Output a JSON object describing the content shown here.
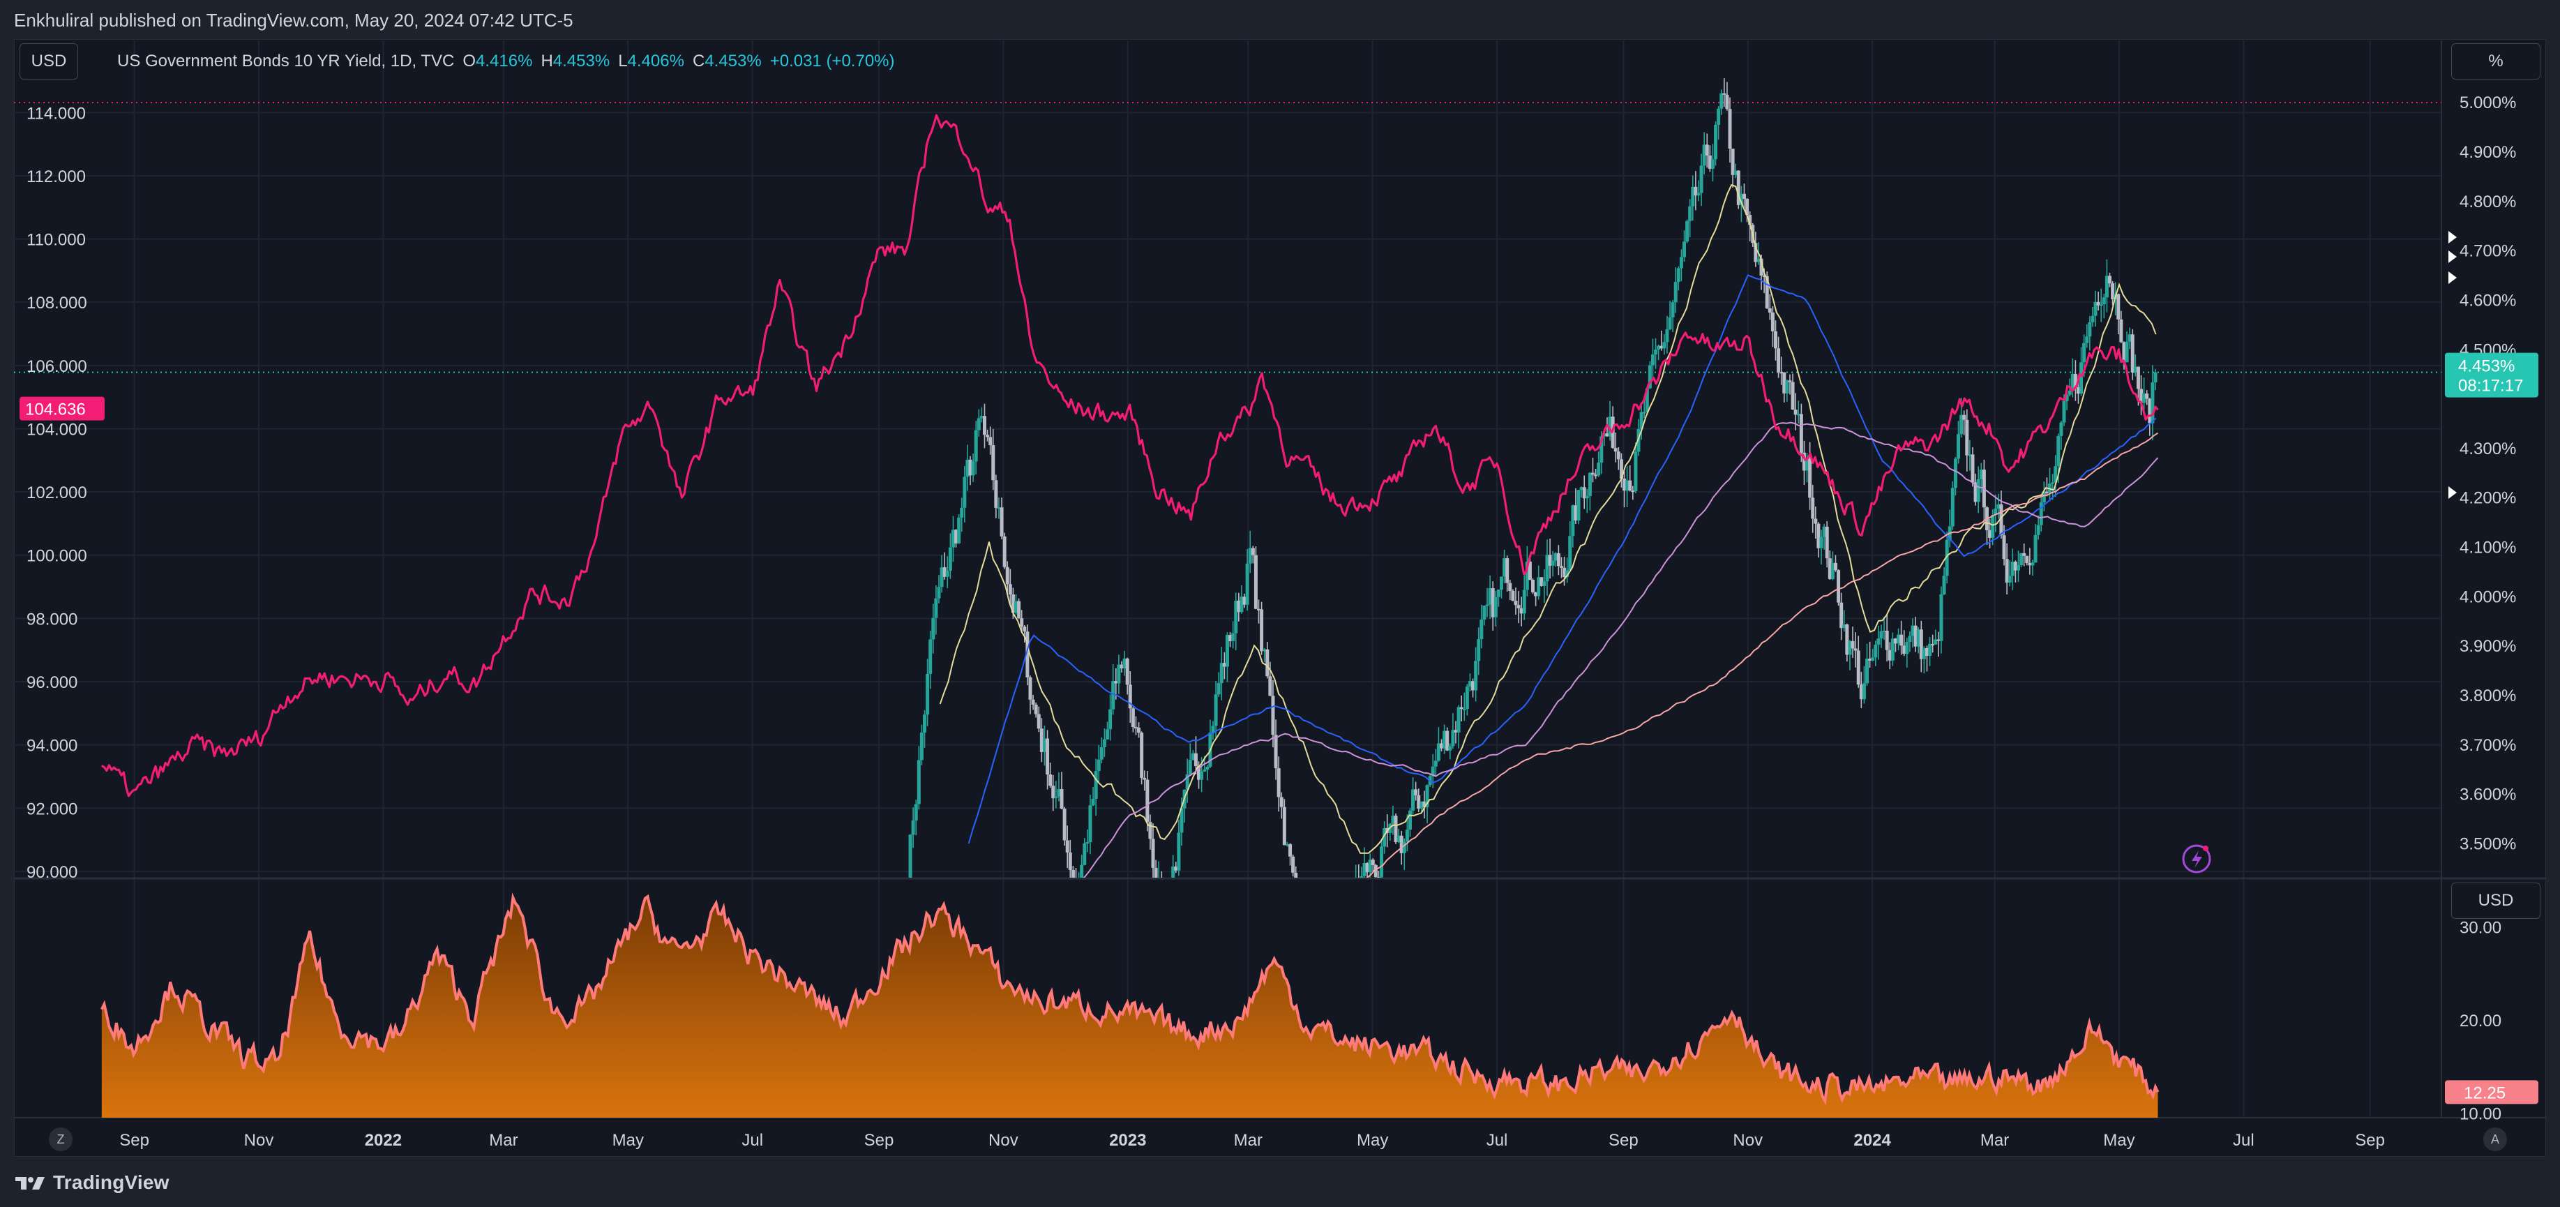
{
  "header": {
    "published_by": "Enkhuliral published on TradingView.com, May 20, 2024 07:42 UTC-5"
  },
  "toolbar": {
    "currency_left": "USD",
    "percent_right": "%",
    "currency_lower": "USD",
    "zoom_left": "Z",
    "auto_right": "A"
  },
  "legend": {
    "symbol": "US Government Bonds 10 YR Yield, 1D, TVC",
    "o_label": "O",
    "o_value": "4.416%",
    "h_label": "H",
    "h_value": "4.453%",
    "l_label": "L",
    "l_value": "4.406%",
    "c_label": "C",
    "c_value": "4.453%",
    "change": "+0.031 (+0.70%)"
  },
  "badges": {
    "dxy_last": "104.636",
    "yield_last": "4.453%",
    "countdown": "08:17:17",
    "vol_last": "12.25"
  },
  "footer": {
    "brand": "TradingView"
  },
  "colors": {
    "background": "#131722",
    "candle_up": "#26a69a",
    "candle_down": "#b8bcc6",
    "dxy": "#f21d74",
    "ma20": "#e6dc9a",
    "ma50": "#2962ff",
    "ma100": "#ce93d8",
    "ma200": "#f7a7a7",
    "volatility_line": "#ff7b7b",
    "volatility_fill_top": "#7a3b05",
    "volatility_fill_bottom": "#d9740e",
    "badge_teal": "#26c6b2",
    "badge_pink": "#f21d74"
  },
  "chart_data": [
    {
      "type": "line",
      "series_role": "main pane: 10Y yield candles with moving averages and dollar index overlay",
      "x_axis": {
        "tick_labels": [
          "Sep",
          "Nov",
          "2022",
          "Mar",
          "May",
          "Jul",
          "Sep",
          "Nov",
          "2023",
          "Mar",
          "May",
          "Jul",
          "Sep",
          "Nov",
          "2024",
          "Mar",
          "May",
          "Jul",
          "Sep"
        ],
        "bold_labels": [
          "2022",
          "2023",
          "2024"
        ],
        "range": [
          "2021-08-14",
          "2024-10-06"
        ]
      },
      "left_axis": {
        "tick_labels": [
          "114.000",
          "112.000",
          "110.000",
          "108.000",
          "106.000",
          "104.000",
          "102.000",
          "100.000",
          "98.000",
          "96.000",
          "94.000",
          "92.000",
          "90.000"
        ],
        "range": [
          89.8,
          114.8
        ]
      },
      "right_axis": {
        "tick_labels": [
          "5.000%",
          "4.900%",
          "4.800%",
          "4.700%",
          "4.600%",
          "4.500%",
          "4.300%",
          "4.200%",
          "4.100%",
          "4.000%",
          "3.900%",
          "3.800%",
          "3.700%",
          "3.600%",
          "3.500%"
        ],
        "range": [
          3.43,
          5.03
        ],
        "note": "percent scale, upper portion of the 10Y yield range"
      },
      "series": [
        {
          "role": "dollar index (left axis)",
          "points": [
            [
              "2021-08-16",
              93.4
            ],
            [
              "2021-09-01",
              92.4
            ],
            [
              "2021-09-15",
              93.2
            ],
            [
              "2021-10-01",
              94.0
            ],
            [
              "2021-10-15",
              93.7
            ],
            [
              "2021-11-01",
              94.2
            ],
            [
              "2021-11-15",
              95.6
            ],
            [
              "2021-12-01",
              96.2
            ],
            [
              "2021-12-15",
              96.1
            ],
            [
              "2022-01-03",
              96.1
            ],
            [
              "2022-01-14",
              95.3
            ],
            [
              "2022-02-01",
              96.3
            ],
            [
              "2022-02-15",
              95.9
            ],
            [
              "2022-03-01",
              97.4
            ],
            [
              "2022-03-15",
              98.8
            ],
            [
              "2022-04-01",
              98.6
            ],
            [
              "2022-04-15",
              100.4
            ],
            [
              "2022-04-28",
              103.8
            ],
            [
              "2022-05-13",
              104.8
            ],
            [
              "2022-05-27",
              101.7
            ],
            [
              "2022-06-15",
              105.0
            ],
            [
              "2022-07-01",
              105.1
            ],
            [
              "2022-07-14",
              108.5
            ],
            [
              "2022-08-01",
              105.3
            ],
            [
              "2022-08-15",
              106.7
            ],
            [
              "2022-09-01",
              109.6
            ],
            [
              "2022-09-15",
              109.7
            ],
            [
              "2022-09-28",
              114.0
            ],
            [
              "2022-10-14",
              113.0
            ],
            [
              "2022-10-25",
              110.9
            ],
            [
              "2022-11-04",
              110.8
            ],
            [
              "2022-11-15",
              106.4
            ],
            [
              "2022-12-01",
              104.8
            ],
            [
              "2022-12-15",
              104.5
            ],
            [
              "2023-01-03",
              104.4
            ],
            [
              "2023-01-15",
              102.2
            ],
            [
              "2023-02-01",
              101.2
            ],
            [
              "2023-02-15",
              103.8
            ],
            [
              "2023-03-01",
              104.5
            ],
            [
              "2023-03-08",
              105.7
            ],
            [
              "2023-03-20",
              103.2
            ],
            [
              "2023-04-01",
              102.6
            ],
            [
              "2023-04-14",
              101.6
            ],
            [
              "2023-05-01",
              101.8
            ],
            [
              "2023-05-15",
              102.5
            ],
            [
              "2023-05-31",
              104.2
            ],
            [
              "2023-06-15",
              102.1
            ],
            [
              "2023-07-01",
              103.0
            ],
            [
              "2023-07-14",
              99.6
            ],
            [
              "2023-08-01",
              101.9
            ],
            [
              "2023-08-15",
              103.2
            ],
            [
              "2023-09-01",
              104.3
            ],
            [
              "2023-09-15",
              105.3
            ],
            [
              "2023-10-03",
              107.1
            ],
            [
              "2023-10-15",
              106.5
            ],
            [
              "2023-11-01",
              106.7
            ],
            [
              "2023-11-15",
              104.3
            ],
            [
              "2023-12-01",
              103.3
            ],
            [
              "2023-12-27",
              100.9
            ],
            [
              "2024-01-15",
              103.3
            ],
            [
              "2024-02-01",
              103.6
            ],
            [
              "2024-02-14",
              104.9
            ],
            [
              "2024-03-01",
              103.9
            ],
            [
              "2024-03-08",
              102.7
            ],
            [
              "2024-04-01",
              104.6
            ],
            [
              "2024-04-16",
              106.4
            ],
            [
              "2024-05-01",
              106.3
            ],
            [
              "2024-05-15",
              104.3
            ],
            [
              "2024-05-20",
              104.6
            ]
          ]
        },
        {
          "role": "10Y yield daily close (right axis)",
          "points": [
            [
              "2022-09-15",
              3.45
            ],
            [
              "2022-09-28",
              3.95
            ],
            [
              "2022-10-21",
              4.34
            ],
            [
              "2022-11-15",
              3.8
            ],
            [
              "2022-12-07",
              3.42
            ],
            [
              "2022-12-30",
              3.88
            ],
            [
              "2023-01-18",
              3.37
            ],
            [
              "2023-03-02",
              4.08
            ],
            [
              "2023-03-24",
              3.38
            ],
            [
              "2023-04-06",
              3.29
            ],
            [
              "2023-04-28",
              3.44
            ],
            [
              "2023-05-15",
              3.5
            ],
            [
              "2023-06-10",
              3.75
            ],
            [
              "2023-07-07",
              4.05
            ],
            [
              "2023-08-01",
              4.05
            ],
            [
              "2023-08-21",
              4.34
            ],
            [
              "2023-09-06",
              4.27
            ],
            [
              "2023-09-27",
              4.62
            ],
            [
              "2023-10-19",
              4.98
            ],
            [
              "2023-11-01",
              4.73
            ],
            [
              "2023-11-20",
              4.42
            ],
            [
              "2023-12-05",
              4.17
            ],
            [
              "2023-12-27",
              3.81
            ],
            [
              "2024-01-12",
              3.94
            ],
            [
              "2024-02-01",
              3.87
            ],
            [
              "2024-02-13",
              4.31
            ],
            [
              "2024-03-08",
              4.07
            ],
            [
              "2024-03-28",
              4.2
            ],
            [
              "2024-04-25",
              4.7
            ],
            [
              "2024-05-15",
              4.35
            ],
            [
              "2024-05-20",
              4.453
            ]
          ]
        },
        {
          "role": "moving average 20 (right axis)",
          "points": [
            [
              "2022-10-01",
              3.78
            ],
            [
              "2022-10-25",
              4.1
            ],
            [
              "2022-12-01",
              3.7
            ],
            [
              "2023-01-20",
              3.5
            ],
            [
              "2023-03-05",
              3.9
            ],
            [
              "2023-03-25",
              3.72
            ],
            [
              "2023-04-25",
              3.48
            ],
            [
              "2023-06-01",
              3.6
            ],
            [
              "2023-07-15",
              3.92
            ],
            [
              "2023-08-30",
              4.22
            ],
            [
              "2023-10-25",
              4.85
            ],
            [
              "2023-11-30",
              4.4
            ],
            [
              "2023-12-30",
              3.92
            ],
            [
              "2024-02-15",
              4.12
            ],
            [
              "2024-03-30",
              4.22
            ],
            [
              "2024-05-01",
              4.62
            ],
            [
              "2024-05-20",
              4.53
            ]
          ]
        },
        {
          "role": "moving average 50 (right axis)",
          "points": [
            [
              "2022-10-15",
              3.5
            ],
            [
              "2022-11-15",
              3.92
            ],
            [
              "2022-12-15",
              3.83
            ],
            [
              "2023-01-31",
              3.7
            ],
            [
              "2023-03-15",
              3.78
            ],
            [
              "2023-04-30",
              3.68
            ],
            [
              "2023-06-01",
              3.62
            ],
            [
              "2023-07-15",
              3.78
            ],
            [
              "2023-08-31",
              4.1
            ],
            [
              "2023-10-01",
              4.35
            ],
            [
              "2023-11-01",
              4.65
            ],
            [
              "2023-11-30",
              4.6
            ],
            [
              "2024-01-05",
              4.28
            ],
            [
              "2024-02-15",
              4.08
            ],
            [
              "2024-03-15",
              4.15
            ],
            [
              "2024-04-15",
              4.25
            ],
            [
              "2024-05-20",
              4.36
            ]
          ]
        },
        {
          "role": "moving average 100 (right axis)",
          "points": [
            [
              "2022-12-01",
              3.38
            ],
            [
              "2023-01-01",
              3.55
            ],
            [
              "2023-02-15",
              3.68
            ],
            [
              "2023-03-20",
              3.72
            ],
            [
              "2023-04-30",
              3.67
            ],
            [
              "2023-06-01",
              3.64
            ],
            [
              "2023-07-15",
              3.7
            ],
            [
              "2023-09-01",
              3.95
            ],
            [
              "2023-10-15",
              4.2
            ],
            [
              "2023-11-15",
              4.35
            ],
            [
              "2023-12-15",
              4.34
            ],
            [
              "2024-01-30",
              4.28
            ],
            [
              "2024-03-15",
              4.17
            ],
            [
              "2024-04-15",
              4.14
            ],
            [
              "2024-05-20",
              4.28
            ]
          ]
        },
        {
          "role": "moving average 200 (right axis)",
          "points": [
            [
              "2023-04-20",
              3.4
            ],
            [
              "2023-06-01",
              3.55
            ],
            [
              "2023-07-15",
              3.67
            ],
            [
              "2023-08-31",
              3.72
            ],
            [
              "2023-10-15",
              3.82
            ],
            [
              "2023-11-30",
              3.98
            ],
            [
              "2024-01-15",
              4.08
            ],
            [
              "2024-02-29",
              4.16
            ],
            [
              "2024-04-15",
              4.24
            ],
            [
              "2024-05-20",
              4.33
            ]
          ]
        }
      ],
      "last_values": {
        "dxy": 104.636,
        "yield": 4.453
      }
    },
    {
      "type": "area",
      "series_role": "lower pane volatility index",
      "y_axis": {
        "tick_labels": [
          "30.00",
          "20.00",
          "10.00"
        ],
        "range": [
          9.5,
          35.0
        ]
      },
      "points": [
        [
          "2021-08-16",
          22.0
        ],
        [
          "2021-09-01",
          17.0
        ],
        [
          "2021-09-20",
          24.0
        ],
        [
          "2021-10-05",
          20.0
        ],
        [
          "2021-10-25",
          16.0
        ],
        [
          "2021-11-10",
          15.0
        ],
        [
          "2021-11-26",
          28.5
        ],
        [
          "2021-12-10",
          19.5
        ],
        [
          "2021-12-31",
          17.5
        ],
        [
          "2022-01-10",
          18.5
        ],
        [
          "2022-01-27",
          27.0
        ],
        [
          "2022-02-14",
          20.5
        ],
        [
          "2022-03-07",
          33.0
        ],
        [
          "2022-03-25",
          21.0
        ],
        [
          "2022-04-10",
          21.0
        ],
        [
          "2022-05-09",
          32.0
        ],
        [
          "2022-05-25",
          27.0
        ],
        [
          "2022-06-16",
          31.0
        ],
        [
          "2022-07-01",
          27.0
        ],
        [
          "2022-07-20",
          24.0
        ],
        [
          "2022-08-15",
          20.0
        ],
        [
          "2022-09-01",
          25.0
        ],
        [
          "2022-09-29",
          31.5
        ],
        [
          "2022-10-15",
          29.0
        ],
        [
          "2022-11-01",
          24.0
        ],
        [
          "2022-11-20",
          22.0
        ],
        [
          "2022-12-15",
          21.5
        ],
        [
          "2023-01-10",
          20.0
        ],
        [
          "2023-02-01",
          18.5
        ],
        [
          "2023-02-25",
          20.0
        ],
        [
          "2023-03-13",
          26.5
        ],
        [
          "2023-03-30",
          19.5
        ],
        [
          "2023-04-20",
          17.5
        ],
        [
          "2023-05-10",
          17.0
        ],
        [
          "2023-06-01",
          16.0
        ],
        [
          "2023-06-20",
          14.0
        ],
        [
          "2023-07-10",
          13.5
        ],
        [
          "2023-08-01",
          13.0
        ],
        [
          "2023-08-20",
          14.5
        ],
        [
          "2023-09-10",
          14.0
        ],
        [
          "2023-09-30",
          17.0
        ],
        [
          "2023-10-10",
          18.0
        ],
        [
          "2023-10-25",
          21.5
        ],
        [
          "2023-11-10",
          15.0
        ],
        [
          "2023-12-01",
          13.0
        ],
        [
          "2023-12-31",
          12.5
        ],
        [
          "2024-01-20",
          13.5
        ],
        [
          "2024-02-10",
          13.0
        ],
        [
          "2024-03-01",
          14.0
        ],
        [
          "2024-03-25",
          13.0
        ],
        [
          "2024-04-19",
          19.0
        ],
        [
          "2024-05-01",
          16.0
        ],
        [
          "2024-05-20",
          12.25
        ]
      ],
      "last_value": 12.25
    }
  ]
}
